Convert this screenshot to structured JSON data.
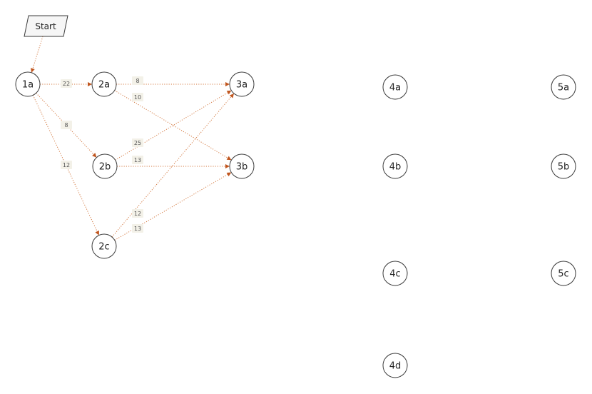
{
  "diagram": {
    "start_label": "Start",
    "nodes": [
      {
        "id": "1a",
        "label": "1a"
      },
      {
        "id": "2a",
        "label": "2a"
      },
      {
        "id": "2b",
        "label": "2b"
      },
      {
        "id": "2c",
        "label": "2c"
      },
      {
        "id": "3a",
        "label": "3a"
      },
      {
        "id": "3b",
        "label": "3b"
      },
      {
        "id": "4a",
        "label": "4a"
      },
      {
        "id": "4b",
        "label": "4b"
      },
      {
        "id": "4c",
        "label": "4c"
      },
      {
        "id": "4d",
        "label": "4d"
      },
      {
        "id": "5a",
        "label": "5a"
      },
      {
        "id": "5b",
        "label": "5b"
      },
      {
        "id": "5c",
        "label": "5c"
      }
    ],
    "edges": [
      {
        "from": "start",
        "to": "1a",
        "weight": ""
      },
      {
        "from": "1a",
        "to": "2a",
        "weight": "22"
      },
      {
        "from": "1a",
        "to": "2b",
        "weight": "8"
      },
      {
        "from": "1a",
        "to": "2c",
        "weight": "12"
      },
      {
        "from": "2a",
        "to": "3a",
        "weight": "8"
      },
      {
        "from": "2a",
        "to": "3b",
        "weight": "10"
      },
      {
        "from": "2b",
        "to": "3a",
        "weight": "25"
      },
      {
        "from": "2b",
        "to": "3b",
        "weight": "13"
      },
      {
        "from": "2c",
        "to": "3a",
        "weight": "12"
      },
      {
        "from": "2c",
        "to": "3b",
        "weight": "13"
      }
    ],
    "colors": {
      "edge": "#d47a42",
      "arrow": "#c0551e",
      "weight_bg": "#f3f1e8"
    }
  }
}
